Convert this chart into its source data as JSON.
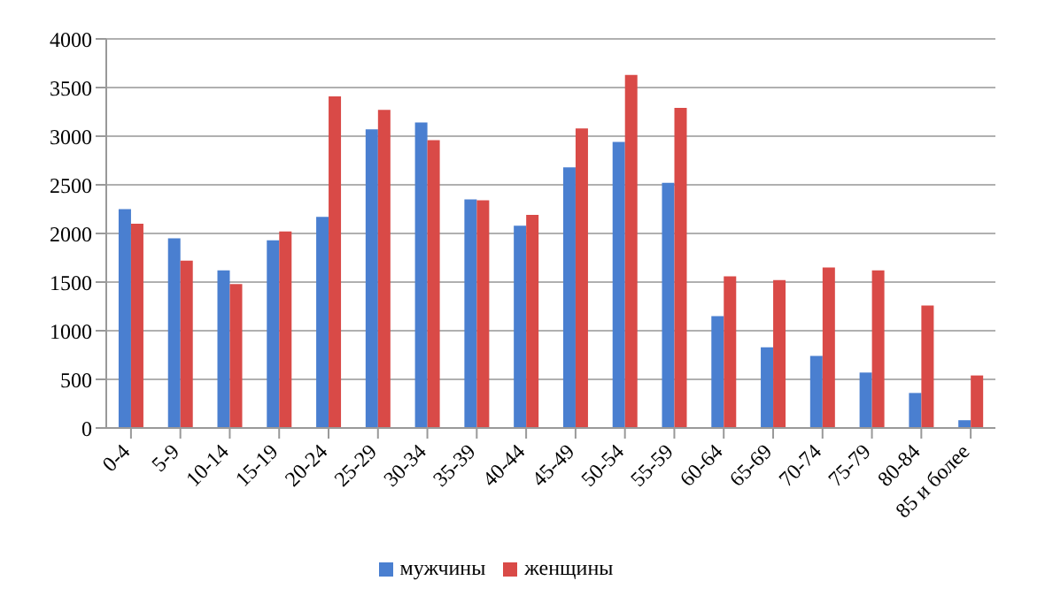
{
  "chart_data": {
    "type": "bar",
    "categories": [
      "0-4",
      "5-9",
      "10-14",
      "15-19",
      "20-24",
      "25-29",
      "30-34",
      "35-39",
      "40-44",
      "45-49",
      "50-54",
      "55-59",
      "60-64",
      "65-69",
      "70-74",
      "75-79",
      "80-84",
      "85 и более"
    ],
    "series": [
      {
        "name": "мужчины",
        "color": "#4a7fd0",
        "values": [
          2250,
          1950,
          1620,
          1930,
          2170,
          3070,
          3140,
          2350,
          2080,
          2680,
          2940,
          2520,
          1150,
          830,
          740,
          570,
          360,
          80
        ]
      },
      {
        "name": "женщины",
        "color": "#d94a47",
        "values": [
          2100,
          1720,
          1480,
          2020,
          3410,
          3270,
          2960,
          2340,
          2190,
          3080,
          3630,
          3290,
          1560,
          1520,
          1650,
          1620,
          1260,
          540
        ]
      }
    ],
    "ylim": [
      0,
      4000
    ],
    "yticks": [
      0,
      500,
      1000,
      1500,
      2000,
      2500,
      3000,
      3500,
      4000
    ],
    "grid": "y",
    "legend": "bottom"
  }
}
